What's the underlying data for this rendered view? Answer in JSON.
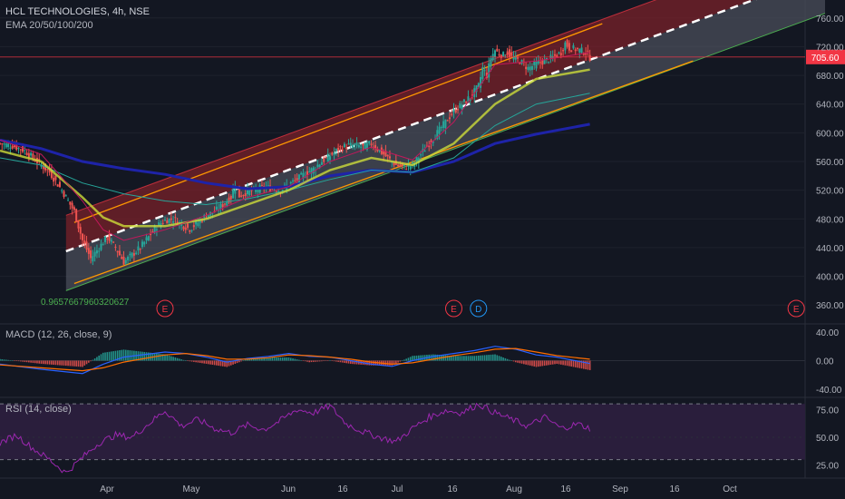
{
  "header": {
    "symbol_line": "HCL TECHNOLOGIES, 4h, NSE",
    "indicator_line": "EMA 20/50/100/200"
  },
  "panes": {
    "macd_label": "MACD (12, 26, close, 9)",
    "rsi_label": "RSI (14, close)"
  },
  "annotations": {
    "fib_value": "0.9657667960320627",
    "events": [
      {
        "label": "E",
        "x_label": "Apr end"
      },
      {
        "label": "E",
        "x_label": "Jul end"
      },
      {
        "label": "D",
        "x_label": "Jul end"
      },
      {
        "label": "E",
        "x_label": "Oct end"
      }
    ]
  },
  "colors": {
    "background": "#131722",
    "up_candle": "#26a69a",
    "down_candle": "#ef5350",
    "channel_upper_fill": "#7a2229",
    "channel_lower_fill": "#4a4e5a",
    "ema20": "#c2185b",
    "ema50": "#cddc39",
    "ema100": "#26a69a",
    "ema200": "#1e23a8",
    "trend_orange": "#ff9800",
    "macd_line": "#2962ff",
    "signal_line": "#ff6d00",
    "rsi_line": "#9c27b0",
    "rsi_band": "#2a1e3c",
    "price_marker": "#f23645"
  },
  "chart_data": [
    {
      "type": "candlestick",
      "title": "HCL TECHNOLOGIES, 4h, NSE",
      "xaxis_ticks": [
        "Apr",
        "May",
        "Jun",
        "16",
        "Jul",
        "16",
        "Aug",
        "16",
        "Sep",
        "16",
        "Oct"
      ],
      "yaxis_ticks": [
        360,
        400,
        440,
        480,
        520,
        560,
        600,
        640,
        680,
        720,
        760
      ],
      "ylim": [
        335,
        785
      ],
      "last_price": "705.60",
      "price_path": [
        [
          0,
          585
        ],
        [
          3,
          582
        ],
        [
          6,
          575
        ],
        [
          9,
          560
        ],
        [
          12,
          545
        ],
        [
          15,
          520
        ],
        [
          18,
          490
        ],
        [
          20,
          450
        ],
        [
          22,
          425
        ],
        [
          24,
          440
        ],
        [
          26,
          455
        ],
        [
          28,
          440
        ],
        [
          30,
          420
        ],
        [
          32,
          430
        ],
        [
          34,
          440
        ],
        [
          36,
          455
        ],
        [
          38,
          470
        ],
        [
          40,
          478
        ],
        [
          42,
          480
        ],
        [
          44,
          472
        ],
        [
          46,
          466
        ],
        [
          48,
          475
        ],
        [
          50,
          485
        ],
        [
          52,
          490
        ],
        [
          54,
          500
        ],
        [
          56,
          510
        ],
        [
          57,
          530
        ],
        [
          58,
          512
        ],
        [
          60,
          518
        ],
        [
          62,
          520
        ],
        [
          64,
          525
        ],
        [
          66,
          522
        ],
        [
          68,
          520
        ],
        [
          70,
          528
        ],
        [
          72,
          535
        ],
        [
          74,
          543
        ],
        [
          76,
          550
        ],
        [
          78,
          560
        ],
        [
          80,
          568
        ],
        [
          82,
          577
        ],
        [
          84,
          582
        ],
        [
          86,
          583
        ],
        [
          88,
          580
        ],
        [
          90,
          585
        ],
        [
          92,
          575
        ],
        [
          94,
          565
        ],
        [
          96,
          555
        ],
        [
          98,
          552
        ],
        [
          100,
          555
        ],
        [
          102,
          570
        ],
        [
          104,
          585
        ],
        [
          106,
          600
        ],
        [
          108,
          615
        ],
        [
          110,
          630
        ],
        [
          112,
          640
        ],
        [
          114,
          650
        ],
        [
          116,
          665
        ],
        [
          117,
          690
        ],
        [
          118,
          680
        ],
        [
          119,
          705
        ],
        [
          120,
          715
        ],
        [
          121,
          710
        ],
        [
          122,
          708
        ],
        [
          123,
          712
        ],
        [
          124,
          705
        ],
        [
          126,
          700
        ],
        [
          128,
          690
        ],
        [
          130,
          696
        ],
        [
          132,
          700
        ],
        [
          134,
          705
        ],
        [
          136,
          712
        ],
        [
          137,
          725
        ],
        [
          138,
          718
        ],
        [
          140,
          716
        ],
        [
          142,
          712
        ],
        [
          143,
          705
        ]
      ],
      "ema20": [
        [
          0,
          590
        ],
        [
          10,
          570
        ],
        [
          20,
          505
        ],
        [
          25,
          465
        ],
        [
          30,
          450
        ],
        [
          40,
          465
        ],
        [
          50,
          485
        ],
        [
          60,
          510
        ],
        [
          70,
          525
        ],
        [
          80,
          560
        ],
        [
          90,
          580
        ],
        [
          100,
          562
        ],
        [
          110,
          615
        ],
        [
          120,
          695
        ],
        [
          130,
          700
        ],
        [
          143,
          712
        ]
      ],
      "ema50": [
        [
          0,
          575
        ],
        [
          10,
          560
        ],
        [
          20,
          510
        ],
        [
          25,
          482
        ],
        [
          30,
          470
        ],
        [
          40,
          470
        ],
        [
          50,
          480
        ],
        [
          60,
          500
        ],
        [
          70,
          520
        ],
        [
          80,
          548
        ],
        [
          90,
          565
        ],
        [
          100,
          555
        ],
        [
          110,
          585
        ],
        [
          120,
          640
        ],
        [
          130,
          675
        ],
        [
          143,
          688
        ]
      ],
      "ema100": [
        [
          0,
          565
        ],
        [
          10,
          555
        ],
        [
          20,
          530
        ],
        [
          30,
          515
        ],
        [
          40,
          505
        ],
        [
          50,
          500
        ],
        [
          60,
          508
        ],
        [
          70,
          520
        ],
        [
          80,
          535
        ],
        [
          90,
          548
        ],
        [
          100,
          545
        ],
        [
          110,
          565
        ],
        [
          120,
          610
        ],
        [
          130,
          640
        ],
        [
          143,
          655
        ]
      ],
      "ema200": [
        [
          0,
          590
        ],
        [
          10,
          578
        ],
        [
          20,
          560
        ],
        [
          30,
          550
        ],
        [
          40,
          542
        ],
        [
          50,
          530
        ],
        [
          60,
          522
        ],
        [
          70,
          525
        ],
        [
          80,
          540
        ],
        [
          90,
          548
        ],
        [
          100,
          545
        ],
        [
          110,
          560
        ],
        [
          120,
          585
        ],
        [
          130,
          598
        ],
        [
          143,
          612
        ]
      ],
      "regression_channel": {
        "x_start": 16,
        "x_end": 200,
        "upper_start": 485,
        "mid_start": 435,
        "lower_start": 380,
        "slope_per_unit": 2.1
      },
      "trend_lines": [
        {
          "x1": 18,
          "y1": 475,
          "x2": 146,
          "y2": 752
        },
        {
          "x1": 18,
          "y1": 390,
          "x2": 168,
          "y2": 700
        }
      ],
      "events_x": [
        40,
        110,
        116,
        193
      ]
    },
    {
      "type": "histogram+line",
      "title": "MACD (12, 26, close, 9)",
      "yaxis_ticks": [
        -40,
        0,
        40
      ],
      "ylim": [
        -50,
        50
      ],
      "macd": [
        [
          0,
          -5
        ],
        [
          10,
          -12
        ],
        [
          20,
          -18
        ],
        [
          25,
          -5
        ],
        [
          30,
          5
        ],
        [
          40,
          12
        ],
        [
          45,
          10
        ],
        [
          50,
          5
        ],
        [
          55,
          -2
        ],
        [
          60,
          3
        ],
        [
          65,
          6
        ],
        [
          70,
          10
        ],
        [
          75,
          6
        ],
        [
          80,
          5
        ],
        [
          85,
          0
        ],
        [
          90,
          -5
        ],
        [
          95,
          -8
        ],
        [
          100,
          0
        ],
        [
          105,
          6
        ],
        [
          110,
          10
        ],
        [
          115,
          14
        ],
        [
          120,
          20
        ],
        [
          125,
          16
        ],
        [
          130,
          8
        ],
        [
          135,
          5
        ],
        [
          143,
          -4
        ]
      ],
      "signal": [
        [
          0,
          -6
        ],
        [
          10,
          -10
        ],
        [
          20,
          -14
        ],
        [
          25,
          -10
        ],
        [
          30,
          -2
        ],
        [
          40,
          8
        ],
        [
          45,
          10
        ],
        [
          50,
          7
        ],
        [
          55,
          2
        ],
        [
          60,
          2
        ],
        [
          65,
          4
        ],
        [
          70,
          8
        ],
        [
          75,
          7
        ],
        [
          80,
          5
        ],
        [
          85,
          2
        ],
        [
          90,
          -2
        ],
        [
          95,
          -5
        ],
        [
          100,
          -3
        ],
        [
          105,
          2
        ],
        [
          110,
          7
        ],
        [
          115,
          11
        ],
        [
          120,
          16
        ],
        [
          125,
          17
        ],
        [
          130,
          12
        ],
        [
          135,
          7
        ],
        [
          143,
          2
        ]
      ]
    },
    {
      "type": "line",
      "title": "RSI (14, close)",
      "yaxis_ticks": [
        25,
        50,
        75
      ],
      "ylim": [
        15,
        85
      ],
      "upper_band": 80,
      "lower_band": 30,
      "rsi": [
        [
          0,
          45
        ],
        [
          4,
          52
        ],
        [
          8,
          40
        ],
        [
          12,
          30
        ],
        [
          16,
          18
        ],
        [
          20,
          32
        ],
        [
          24,
          45
        ],
        [
          28,
          52
        ],
        [
          32,
          50
        ],
        [
          36,
          62
        ],
        [
          40,
          74
        ],
        [
          44,
          60
        ],
        [
          48,
          66
        ],
        [
          52,
          58
        ],
        [
          56,
          54
        ],
        [
          60,
          61
        ],
        [
          64,
          57
        ],
        [
          68,
          65
        ],
        [
          72,
          75
        ],
        [
          76,
          72
        ],
        [
          80,
          78
        ],
        [
          84,
          62
        ],
        [
          88,
          55
        ],
        [
          92,
          50
        ],
        [
          96,
          46
        ],
        [
          100,
          58
        ],
        [
          104,
          68
        ],
        [
          108,
          74
        ],
        [
          112,
          72
        ],
        [
          116,
          80
        ],
        [
          118,
          76
        ],
        [
          120,
          72
        ],
        [
          124,
          66
        ],
        [
          128,
          60
        ],
        [
          132,
          68
        ],
        [
          136,
          58
        ],
        [
          140,
          62
        ],
        [
          143,
          58
        ]
      ]
    }
  ]
}
